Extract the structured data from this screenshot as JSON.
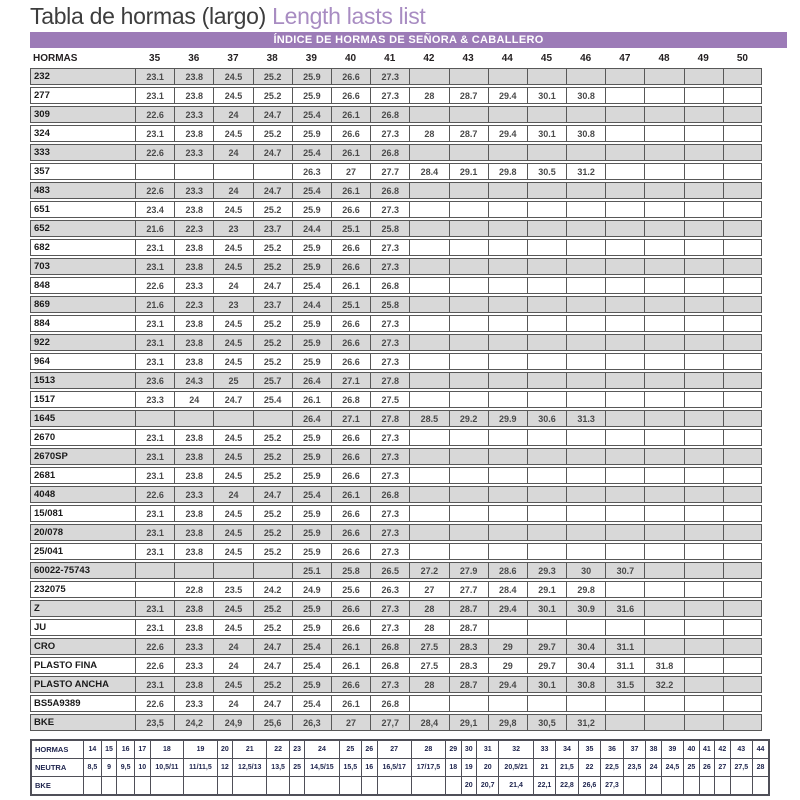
{
  "title": {
    "main": "Tabla de hormas (largo) ",
    "accent": "Length lasts list"
  },
  "banner": "ÍNDICE DE HORMAS DE SEÑORA & CABALLERO",
  "colors": {
    "banner_bg": "#9c7bb7",
    "title_accent": "#a88cc2",
    "row_alt": "#d8d8d8",
    "border": "#585858",
    "bottom_text": "#20264f"
  },
  "main_table": {
    "label_header": "HORMAS",
    "size_headers": [
      "35",
      "36",
      "37",
      "38",
      "39",
      "40",
      "41",
      "42",
      "43",
      "44",
      "45",
      "46",
      "47",
      "48",
      "49",
      "50"
    ],
    "rows": [
      {
        "name": "232",
        "values": [
          "23.1",
          "23.8",
          "24.5",
          "25.2",
          "25.9",
          "26.6",
          "27.3",
          "",
          "",
          "",
          "",
          "",
          "",
          "",
          "",
          ""
        ]
      },
      {
        "name": "277",
        "values": [
          "23.1",
          "23.8",
          "24.5",
          "25.2",
          "25.9",
          "26.6",
          "27.3",
          "28",
          "28.7",
          "29.4",
          "30.1",
          "30.8",
          "",
          "",
          "",
          ""
        ]
      },
      {
        "name": "309",
        "values": [
          "22.6",
          "23.3",
          "24",
          "24.7",
          "25.4",
          "26.1",
          "26.8",
          "",
          "",
          "",
          "",
          "",
          "",
          "",
          "",
          ""
        ]
      },
      {
        "name": "324",
        "values": [
          "23.1",
          "23.8",
          "24.5",
          "25.2",
          "25.9",
          "26.6",
          "27.3",
          "28",
          "28.7",
          "29.4",
          "30.1",
          "30.8",
          "",
          "",
          "",
          ""
        ]
      },
      {
        "name": "333",
        "values": [
          "22.6",
          "23.3",
          "24",
          "24.7",
          "25.4",
          "26.1",
          "26.8",
          "",
          "",
          "",
          "",
          "",
          "",
          "",
          "",
          ""
        ]
      },
      {
        "name": "357",
        "values": [
          "",
          "",
          "",
          "",
          "26.3",
          "27",
          "27.7",
          "28.4",
          "29.1",
          "29.8",
          "30.5",
          "31.2",
          "",
          "",
          "",
          ""
        ]
      },
      {
        "name": "483",
        "values": [
          "22.6",
          "23.3",
          "24",
          "24.7",
          "25.4",
          "26.1",
          "26.8",
          "",
          "",
          "",
          "",
          "",
          "",
          "",
          "",
          ""
        ]
      },
      {
        "name": "651",
        "values": [
          "23.4",
          "23.8",
          "24.5",
          "25.2",
          "25.9",
          "26.6",
          "27.3",
          "",
          "",
          "",
          "",
          "",
          "",
          "",
          "",
          ""
        ]
      },
      {
        "name": "652",
        "values": [
          "21.6",
          "22.3",
          "23",
          "23.7",
          "24.4",
          "25.1",
          "25.8",
          "",
          "",
          "",
          "",
          "",
          "",
          "",
          "",
          ""
        ]
      },
      {
        "name": "682",
        "values": [
          "23.1",
          "23.8",
          "24.5",
          "25.2",
          "25.9",
          "26.6",
          "27.3",
          "",
          "",
          "",
          "",
          "",
          "",
          "",
          "",
          ""
        ]
      },
      {
        "name": "703",
        "values": [
          "23.1",
          "23.8",
          "24.5",
          "25.2",
          "25.9",
          "26.6",
          "27.3",
          "",
          "",
          "",
          "",
          "",
          "",
          "",
          "",
          ""
        ]
      },
      {
        "name": "848",
        "values": [
          "22.6",
          "23.3",
          "24",
          "24.7",
          "25.4",
          "26.1",
          "26.8",
          "",
          "",
          "",
          "",
          "",
          "",
          "",
          "",
          ""
        ]
      },
      {
        "name": "869",
        "values": [
          "21.6",
          "22.3",
          "23",
          "23.7",
          "24.4",
          "25.1",
          "25.8",
          "",
          "",
          "",
          "",
          "",
          "",
          "",
          "",
          ""
        ]
      },
      {
        "name": "884",
        "values": [
          "23.1",
          "23.8",
          "24.5",
          "25.2",
          "25.9",
          "26.6",
          "27.3",
          "",
          "",
          "",
          "",
          "",
          "",
          "",
          "",
          ""
        ]
      },
      {
        "name": "922",
        "values": [
          "23.1",
          "23.8",
          "24.5",
          "25.2",
          "25.9",
          "26.6",
          "27.3",
          "",
          "",
          "",
          "",
          "",
          "",
          "",
          "",
          ""
        ]
      },
      {
        "name": "964",
        "values": [
          "23.1",
          "23.8",
          "24.5",
          "25.2",
          "25.9",
          "26.6",
          "27.3",
          "",
          "",
          "",
          "",
          "",
          "",
          "",
          "",
          ""
        ]
      },
      {
        "name": "1513",
        "values": [
          "23.6",
          "24.3",
          "25",
          "25.7",
          "26.4",
          "27.1",
          "27.8",
          "",
          "",
          "",
          "",
          "",
          "",
          "",
          "",
          ""
        ]
      },
      {
        "name": "1517",
        "values": [
          "23.3",
          "24",
          "24.7",
          "25.4",
          "26.1",
          "26.8",
          "27.5",
          "",
          "",
          "",
          "",
          "",
          "",
          "",
          "",
          ""
        ]
      },
      {
        "name": "1645",
        "values": [
          "",
          "",
          "",
          "",
          "26.4",
          "27.1",
          "27.8",
          "28.5",
          "29.2",
          "29.9",
          "30.6",
          "31.3",
          "",
          "",
          "",
          ""
        ]
      },
      {
        "name": "2670",
        "values": [
          "23.1",
          "23.8",
          "24.5",
          "25.2",
          "25.9",
          "26.6",
          "27.3",
          "",
          "",
          "",
          "",
          "",
          "",
          "",
          "",
          ""
        ]
      },
      {
        "name": "2670SP",
        "values": [
          "23.1",
          "23.8",
          "24.5",
          "25.2",
          "25.9",
          "26.6",
          "27.3",
          "",
          "",
          "",
          "",
          "",
          "",
          "",
          "",
          ""
        ]
      },
      {
        "name": "2681",
        "values": [
          "23.1",
          "23.8",
          "24.5",
          "25.2",
          "25.9",
          "26.6",
          "27.3",
          "",
          "",
          "",
          "",
          "",
          "",
          "",
          "",
          ""
        ]
      },
      {
        "name": "4048",
        "values": [
          "22.6",
          "23.3",
          "24",
          "24.7",
          "25.4",
          "26.1",
          "26.8",
          "",
          "",
          "",
          "",
          "",
          "",
          "",
          "",
          ""
        ]
      },
      {
        "name": "15/081",
        "values": [
          "23.1",
          "23.8",
          "24.5",
          "25.2",
          "25.9",
          "26.6",
          "27.3",
          "",
          "",
          "",
          "",
          "",
          "",
          "",
          "",
          ""
        ]
      },
      {
        "name": "20/078",
        "values": [
          "23.1",
          "23.8",
          "24.5",
          "25.2",
          "25.9",
          "26.6",
          "27.3",
          "",
          "",
          "",
          "",
          "",
          "",
          "",
          "",
          ""
        ]
      },
      {
        "name": "25/041",
        "values": [
          "23.1",
          "23.8",
          "24.5",
          "25.2",
          "25.9",
          "26.6",
          "27.3",
          "",
          "",
          "",
          "",
          "",
          "",
          "",
          "",
          ""
        ]
      },
      {
        "name": "60022-75743",
        "values": [
          "",
          "",
          "",
          "",
          "25.1",
          "25.8",
          "26.5",
          "27.2",
          "27.9",
          "28.6",
          "29.3",
          "30",
          "30.7",
          "",
          "",
          ""
        ]
      },
      {
        "name": "232075",
        "values": [
          "",
          "22.8",
          "23.5",
          "24.2",
          "24.9",
          "25.6",
          "26.3",
          "27",
          "27.7",
          "28.4",
          "29.1",
          "29.8",
          "",
          "",
          "",
          ""
        ]
      },
      {
        "name": "Z",
        "values": [
          "23.1",
          "23.8",
          "24.5",
          "25.2",
          "25.9",
          "26.6",
          "27.3",
          "28",
          "28.7",
          "29.4",
          "30.1",
          "30.9",
          "31.6",
          "",
          "",
          ""
        ]
      },
      {
        "name": "JU",
        "values": [
          "23.1",
          "23.8",
          "24.5",
          "25.2",
          "25.9",
          "26.6",
          "27.3",
          "28",
          "28.7",
          "",
          "",
          "",
          "",
          "",
          "",
          ""
        ]
      },
      {
        "name": "CRO",
        "values": [
          "22.6",
          "23.3",
          "24",
          "24.7",
          "25.4",
          "26.1",
          "26.8",
          "27.5",
          "28.3",
          "29",
          "29.7",
          "30.4",
          "31.1",
          "",
          "",
          ""
        ]
      },
      {
        "name": "PLASTO FINA",
        "values": [
          "22.6",
          "23.3",
          "24",
          "24.7",
          "25.4",
          "26.1",
          "26.8",
          "27.5",
          "28.3",
          "29",
          "29.7",
          "30.4",
          "31.1",
          "31.8",
          "",
          ""
        ]
      },
      {
        "name": "PLASTO ANCHA",
        "values": [
          "23.1",
          "23.8",
          "24.5",
          "25.2",
          "25.9",
          "26.6",
          "27.3",
          "28",
          "28.7",
          "29.4",
          "30.1",
          "30.8",
          "31.5",
          "32.2",
          "",
          ""
        ]
      },
      {
        "name": "BS5A9389",
        "values": [
          "22.6",
          "23.3",
          "24",
          "24.7",
          "25.4",
          "26.1",
          "26.8",
          "",
          "",
          "",
          "",
          "",
          "",
          "",
          "",
          ""
        ]
      },
      {
        "name": "BKE",
        "values": [
          "23,5",
          "24,2",
          "24,9",
          "25,6",
          "26,3",
          "27",
          "27,7",
          "28,4",
          "29,1",
          "29,8",
          "30,5",
          "31,2",
          "",
          "",
          "",
          ""
        ]
      }
    ]
  },
  "bottom_table": {
    "rows": [
      {
        "label": "HORMAS",
        "values": [
          "14",
          "15",
          "16",
          "17",
          "18",
          "19",
          "20",
          "21",
          "22",
          "23",
          "24",
          "25",
          "26",
          "27",
          "28",
          "29",
          "30",
          "31",
          "32",
          "33",
          "34",
          "35",
          "36",
          "37",
          "38",
          "39",
          "40",
          "41",
          "42",
          "43",
          "44"
        ]
      },
      {
        "label": "NEUTRA",
        "values": [
          "8,5",
          "9",
          "9,5",
          "10",
          "10,5/11",
          "11/11,5",
          "12",
          "12,5/13",
          "13,5",
          "25",
          "14,5/15",
          "15,5",
          "16",
          "16,5/17",
          "17/17,5",
          "18",
          "19",
          "20",
          "20,5/21",
          "21",
          "21,5",
          "22",
          "22,5",
          "23,5",
          "24",
          "24,5",
          "25",
          "26",
          "27",
          "27,5",
          "28"
        ]
      },
      {
        "label": "BKE",
        "values": [
          "",
          "",
          "",
          "",
          "",
          "",
          "",
          "",
          "",
          "",
          "",
          "",
          "",
          "",
          "",
          "",
          "20",
          "20,7",
          "21,4",
          "22,1",
          "22,8",
          "26,6",
          "27,3",
          "",
          "",
          "",
          "",
          "",
          "",
          "",
          ""
        ]
      }
    ]
  }
}
